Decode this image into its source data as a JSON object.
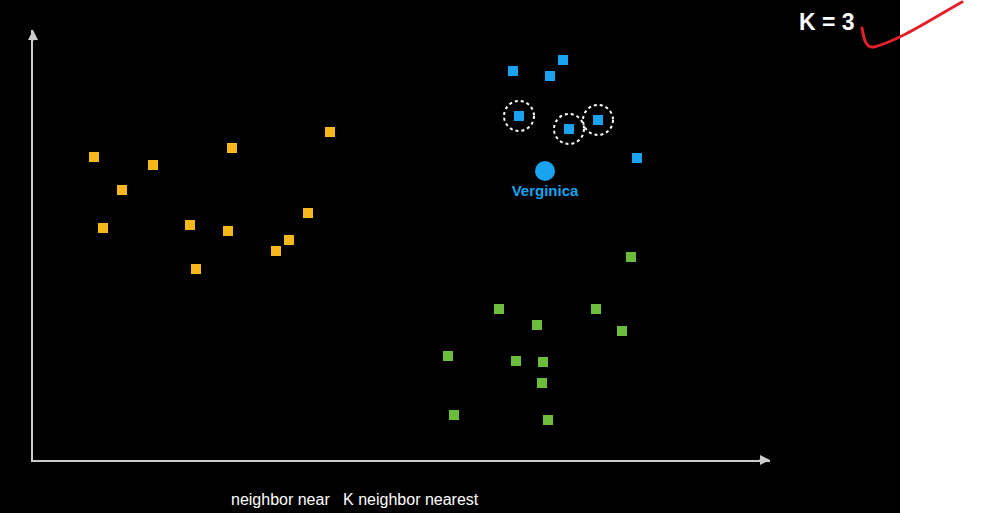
{
  "chart_data": {
    "type": "scatter",
    "annotations": [
      "K = 3",
      "neighbor near   K neighbor nearest"
    ],
    "xlim": [
      0,
      737
    ],
    "ylim": [
      0,
      430
    ],
    "xticks": [],
    "yticks": [],
    "tick_labels": false,
    "grid": false,
    "series": [
      {
        "color": "#f5b71c",
        "marker": "square",
        "x": [
          61,
          89,
          120,
          70,
          199,
          297,
          157,
          195,
          275,
          256,
          243,
          163
        ],
        "values": [
          303,
          270,
          295,
          232,
          312,
          328,
          235,
          229,
          247,
          220,
          209,
          191
        ]
      },
      {
        "color": "#1aa3f0",
        "marker": "square",
        "x": [
          480,
          517,
          530,
          486,
          536,
          565,
          604
        ],
        "values": [
          389,
          384,
          400,
          344,
          331,
          340,
          302
        ],
        "highlight": [
          false,
          false,
          false,
          true,
          true,
          true,
          false
        ]
      },
      {
        "color": "#6cbd3c",
        "marker": "square",
        "x": [
          598,
          466,
          504,
          563,
          589,
          415,
          483,
          510,
          509,
          421,
          515
        ],
        "values": [
          203,
          151,
          135,
          151,
          129,
          104,
          99,
          98,
          77,
          45,
          40
        ]
      },
      {
        "name": "Verginica",
        "color": "#1aa3f0",
        "marker": "circle",
        "x": [
          512
        ],
        "values": [
          289
        ]
      }
    ]
  }
}
